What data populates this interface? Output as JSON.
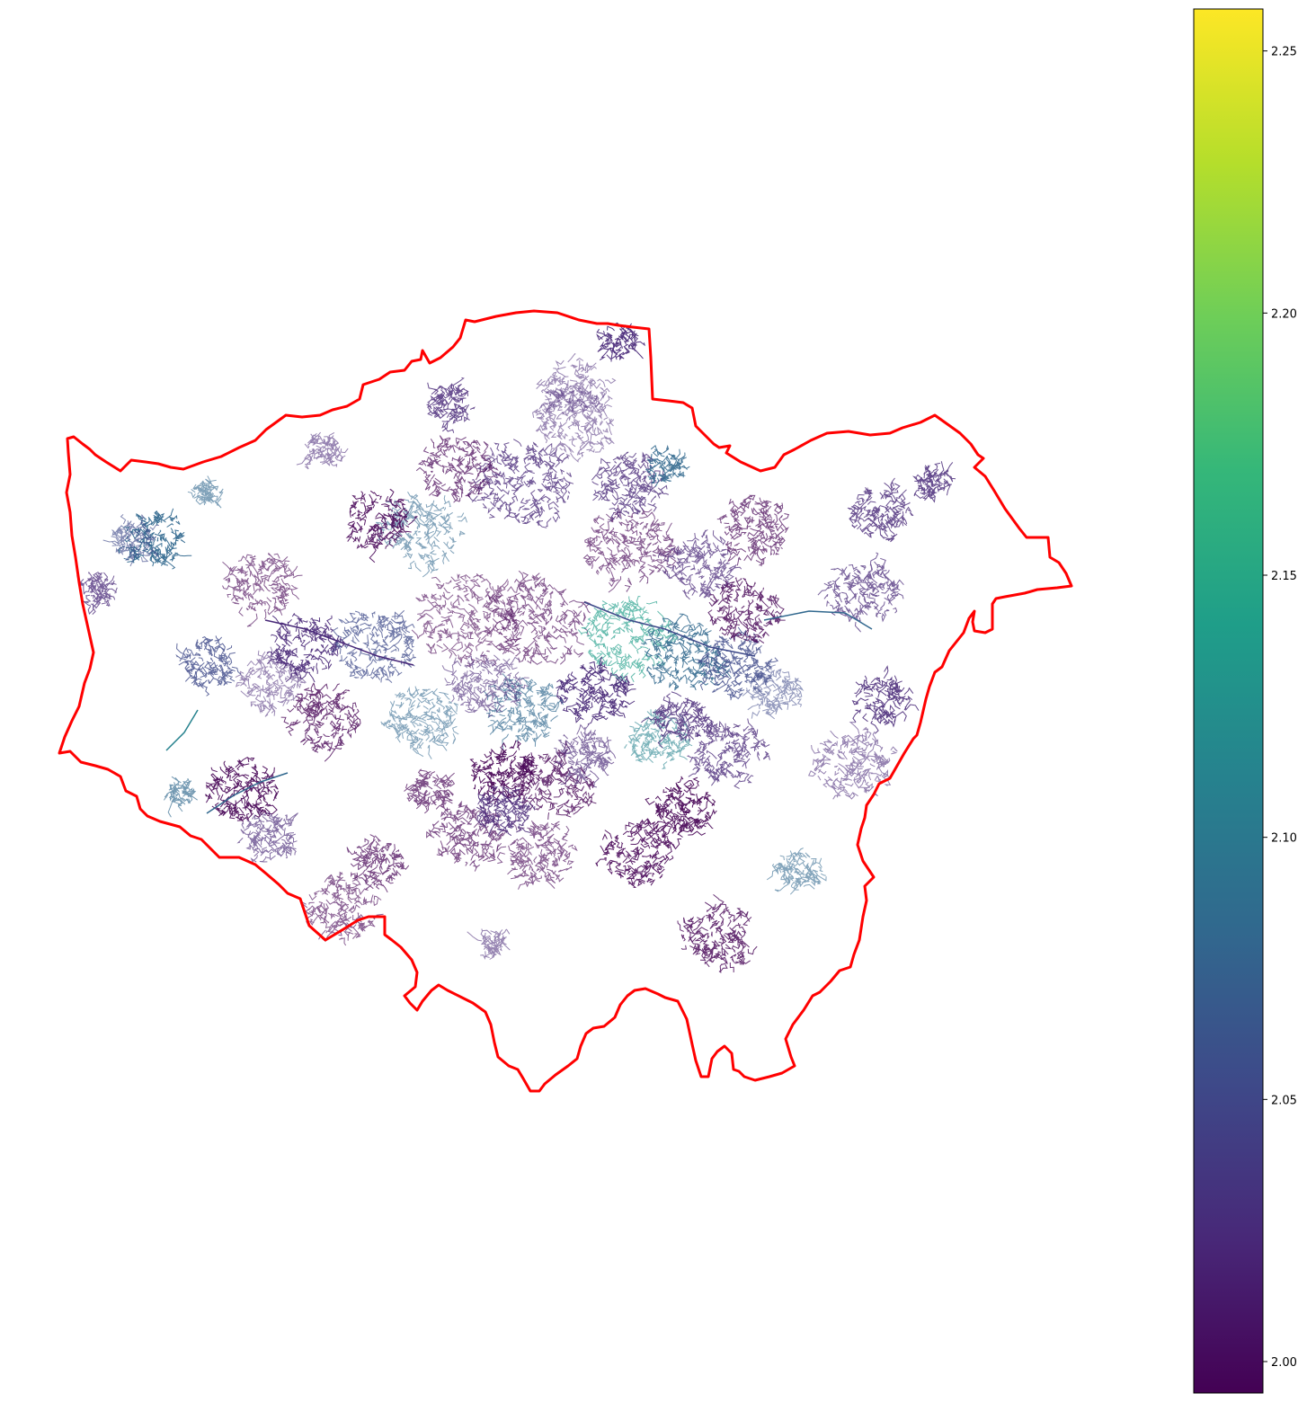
{
  "map": {
    "boundary_color": "#ff0000",
    "colormap": "viridis"
  },
  "colorbar": {
    "min": 1.994,
    "max": 2.258,
    "ticks": [
      {
        "value": 2.0,
        "label": "2.00"
      },
      {
        "value": 2.05,
        "label": "2.05"
      },
      {
        "value": 2.1,
        "label": "2.10"
      },
      {
        "value": 2.15,
        "label": "2.15"
      },
      {
        "value": 2.2,
        "label": "2.20"
      },
      {
        "value": 2.25,
        "label": "2.25"
      }
    ],
    "stops": [
      "#440154",
      "#482878",
      "#3e4989",
      "#31688e",
      "#26828e",
      "#1f9e89",
      "#35b779",
      "#6ece58",
      "#b5de2b",
      "#fde725"
    ]
  }
}
